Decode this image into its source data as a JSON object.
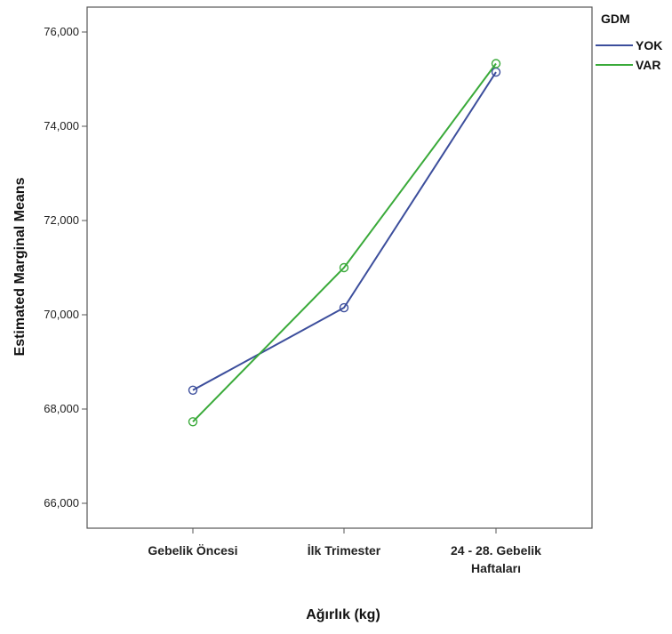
{
  "chart_data": {
    "type": "line",
    "title": "",
    "xlabel": "Ağırlık (kg)",
    "ylabel": "Estimated Marginal Means",
    "categories": [
      [
        "Gebelik Öncesi"
      ],
      [
        "İlk Trimester"
      ],
      [
        "24 - 28. Gebelik",
        "Haftaları"
      ]
    ],
    "ylim": [
      65000,
      76500
    ],
    "yticks": [
      66000,
      68000,
      70000,
      72000,
      74000,
      76000
    ],
    "ytick_labels": [
      "66,000",
      "68,000",
      "70,000",
      "72,000",
      "74,000",
      "76,000"
    ],
    "grid": false,
    "legend": {
      "title": "GDM",
      "position": "top-right"
    },
    "series": [
      {
        "name": "YOK",
        "color": "#3c4e9c",
        "values": [
          68400,
          70150,
          75150
        ]
      },
      {
        "name": "VAR",
        "color": "#3aaa3a",
        "values": [
          67730,
          71000,
          75330
        ]
      }
    ]
  }
}
